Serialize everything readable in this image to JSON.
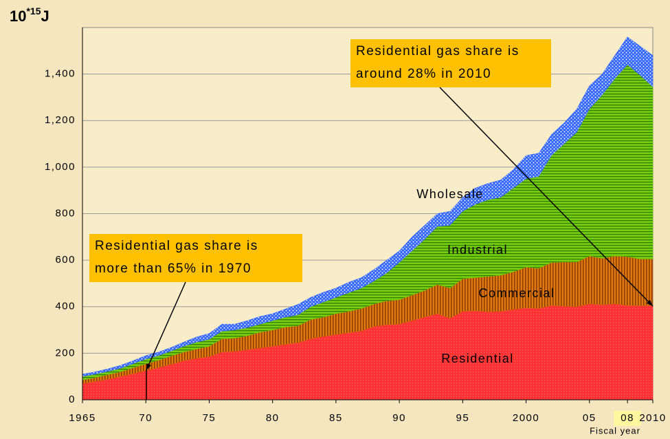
{
  "chart_data": {
    "type": "stacked_area",
    "y_unit": {
      "base": "10",
      "exponent": "*15",
      "suffix": "J"
    },
    "x_label": "Fiscal year",
    "x": [
      1965,
      1966,
      1967,
      1968,
      1969,
      1970,
      1971,
      1972,
      1973,
      1974,
      1975,
      1976,
      1977,
      1978,
      1979,
      1980,
      1981,
      1982,
      1983,
      1984,
      1985,
      1986,
      1987,
      1988,
      1989,
      1990,
      1991,
      1992,
      1993,
      1994,
      1995,
      1996,
      1997,
      1998,
      1999,
      2000,
      2001,
      2002,
      2003,
      2004,
      2005,
      2006,
      2007,
      2008,
      2009,
      2010
    ],
    "xlim": [
      1965,
      2010
    ],
    "xticks": [
      1965,
      {
        "value": 1970,
        "label": "70"
      },
      {
        "value": 1975,
        "label": "75"
      },
      {
        "value": 1980,
        "label": "80"
      },
      {
        "value": 1985,
        "label": "85"
      },
      {
        "value": 1990,
        "label": "90"
      },
      {
        "value": 1995,
        "label": "95"
      },
      2000,
      {
        "value": 2005,
        "label": "05"
      },
      {
        "value": 2008,
        "label": "08"
      },
      2010
    ],
    "highlighted_xtick": 2008,
    "ylim": [
      0,
      1600
    ],
    "yticks": [
      0,
      200,
      400,
      600,
      800,
      {
        "value": 1000,
        "label": "1,000"
      },
      {
        "value": 1200,
        "label": "1,200"
      },
      {
        "value": 1400,
        "label": "1,400"
      }
    ],
    "grid": true,
    "series": [
      {
        "name": "Residential",
        "color": "#ff3333",
        "values": [
          70,
          78,
          88,
          100,
          112,
          125,
          138,
          152,
          168,
          178,
          185,
          205,
          208,
          215,
          222,
          230,
          238,
          245,
          262,
          272,
          280,
          288,
          295,
          315,
          322,
          325,
          340,
          355,
          370,
          350,
          380,
          382,
          378,
          380,
          388,
          395,
          392,
          405,
          402,
          400,
          412,
          408,
          412,
          405,
          404,
          405
        ]
      },
      {
        "name": "Commercial",
        "color": "#cc6600",
        "values": [
          15,
          17,
          20,
          20,
          26,
          30,
          32,
          36,
          37,
          40,
          45,
          57,
          57,
          60,
          68,
          70,
          74,
          73,
          83,
          83,
          90,
          92,
          97,
          97,
          103,
          105,
          110,
          115,
          125,
          130,
          140,
          143,
          152,
          155,
          162,
          175,
          173,
          185,
          190,
          192,
          206,
          200,
          206,
          210,
          201,
          200
        ]
      },
      {
        "name": "Industrial",
        "color": "#66cc00",
        "values": [
          15,
          15,
          14,
          15,
          17,
          20,
          20,
          22,
          25,
          30,
          30,
          33,
          35,
          35,
          35,
          40,
          43,
          47,
          55,
          65,
          70,
          80,
          88,
          98,
          120,
          160,
          190,
          220,
          250,
          270,
          290,
          315,
          330,
          335,
          360,
          380,
          395,
          460,
          508,
          558,
          632,
          702,
          762,
          825,
          790,
          740
        ]
      },
      {
        "name": "Wholesale",
        "color": "#3366ff",
        "values": [
          10,
          10,
          11,
          13,
          13,
          15,
          15,
          15,
          18,
          22,
          25,
          30,
          25,
          30,
          33,
          30,
          35,
          45,
          40,
          42,
          40,
          45,
          45,
          50,
          55,
          50,
          60,
          60,
          55,
          60,
          60,
          70,
          70,
          75,
          80,
          100,
          100,
          90,
          90,
          100,
          100,
          90,
          100,
          120,
          125,
          135
        ]
      }
    ],
    "annotations": [
      {
        "lines": [
          "Residential gas share is",
          "more than 65% in 1970"
        ]
      },
      {
        "lines": [
          "Residential gas share is",
          "around 28% in 2010"
        ]
      }
    ]
  }
}
